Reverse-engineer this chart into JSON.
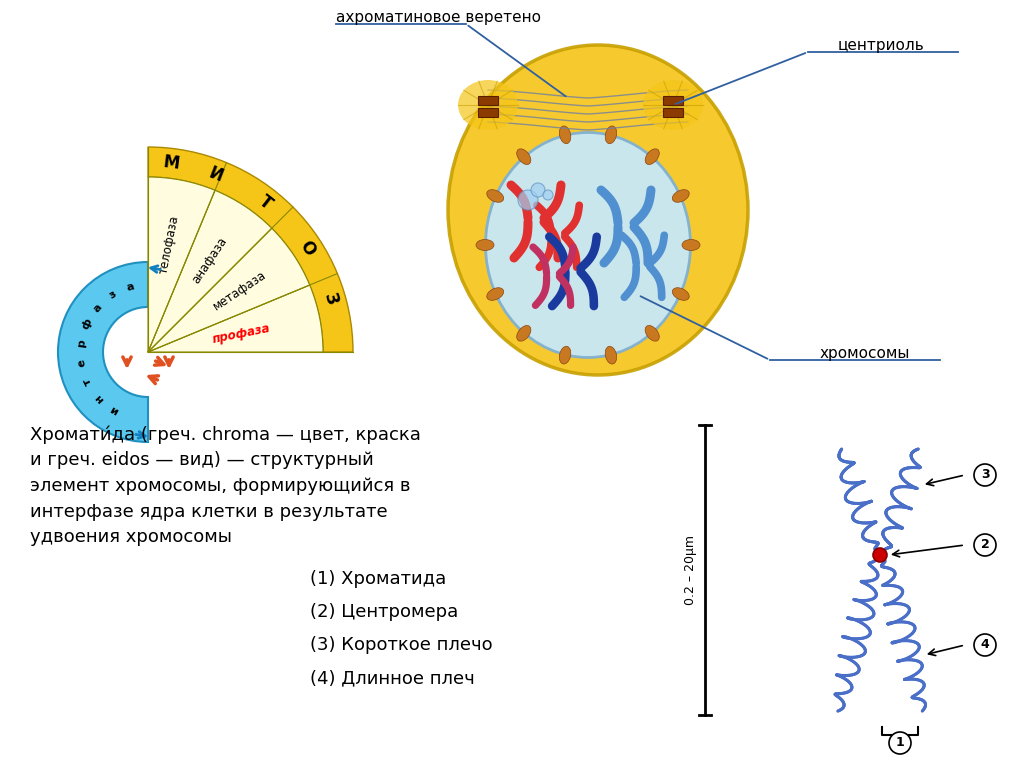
{
  "background_color": "#ffffff",
  "text_definition": "Хромати́да (греч. chroma — цвет, краска\nи греч. eidos — вид) — структурный\nэлемент хромосомы, формирующийся в\nинтерфазе ядра клетки в результате\nудвоения хромосомы",
  "legend_items": [
    "(1) Хроматида",
    "(2) Центромера",
    "(3) Короткое плечо",
    "(4) Длинное плеч"
  ],
  "label_akhromatin": "ахроматиновое веретено",
  "label_centriol": "центриоль",
  "label_chromosomy": "хромосомы",
  "outer_ring_color": "#f5c518",
  "inner_fan_color": "#fffce0",
  "interfaza_color": "#5bc8ef",
  "cell_outer_color": "#f5c518",
  "cell_inner_color": "#b8ddf5",
  "chromo_struct_color": "#4a6fc8",
  "centromere_color": "#cc0000",
  "chromo_red": "#e03030",
  "chromo_pink": "#c03060",
  "chromo_blue": "#1a3a9e",
  "chromo_lblue": "#5090d0",
  "annotation_color": "#3060a0"
}
